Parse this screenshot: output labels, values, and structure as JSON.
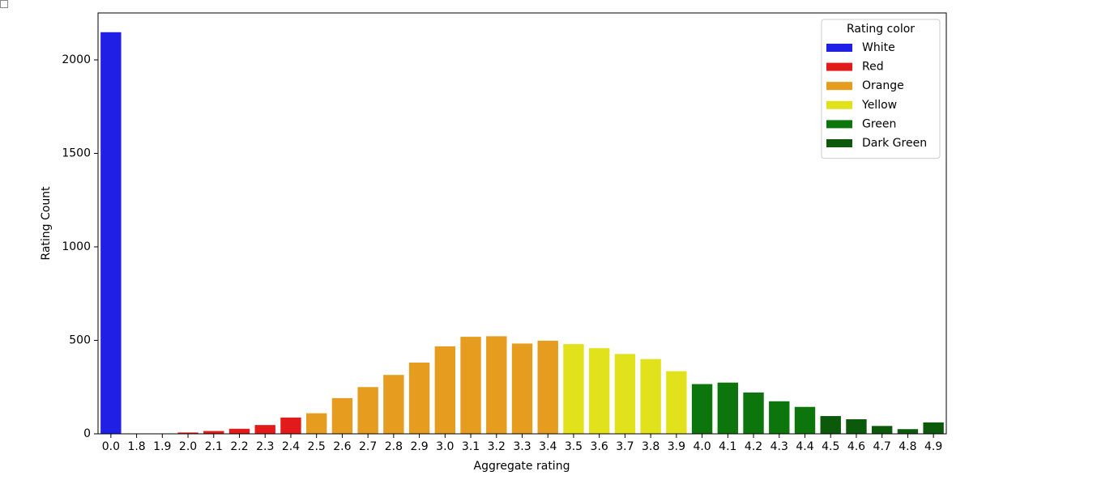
{
  "chart_data": {
    "type": "bar",
    "x_label": "Aggregate rating",
    "y_label": "Rating Count",
    "categories": [
      "0.0",
      "1.8",
      "1.9",
      "2.0",
      "2.1",
      "2.2",
      "2.3",
      "2.4",
      "2.5",
      "2.6",
      "2.7",
      "2.8",
      "2.9",
      "3.0",
      "3.1",
      "3.2",
      "3.3",
      "3.4",
      "3.5",
      "3.6",
      "3.7",
      "3.8",
      "3.9",
      "4.0",
      "4.1",
      "4.2",
      "4.3",
      "4.4",
      "4.5",
      "4.6",
      "4.7",
      "4.8",
      "4.9"
    ],
    "legend_title": "Rating color",
    "legend": "upper right",
    "series": [
      {
        "name": "White",
        "color": "#1f1fe6",
        "values": [
          2148,
          null,
          null,
          null,
          null,
          null,
          null,
          null,
          null,
          null,
          null,
          null,
          null,
          null,
          null,
          null,
          null,
          null,
          null,
          null,
          null,
          null,
          null,
          null,
          null,
          null,
          null,
          null,
          null,
          null,
          null,
          null,
          null
        ]
      },
      {
        "name": "Red",
        "color": "#e31a1a",
        "values": [
          null,
          1,
          2,
          7,
          15,
          27,
          47,
          87,
          null,
          null,
          null,
          null,
          null,
          null,
          null,
          null,
          null,
          null,
          null,
          null,
          null,
          null,
          null,
          null,
          null,
          null,
          null,
          null,
          null,
          null,
          null,
          null,
          null
        ]
      },
      {
        "name": "Orange",
        "color": "#e59c1f",
        "values": [
          null,
          null,
          null,
          null,
          null,
          null,
          null,
          null,
          110,
          191,
          250,
          315,
          381,
          468,
          519,
          522,
          483,
          498,
          null,
          null,
          null,
          null,
          null,
          null,
          null,
          null,
          null,
          null,
          null,
          null,
          null,
          null,
          null
        ]
      },
      {
        "name": "Yellow",
        "color": "#e2e21c",
        "values": [
          null,
          null,
          null,
          null,
          null,
          null,
          null,
          null,
          null,
          null,
          null,
          null,
          null,
          null,
          null,
          null,
          null,
          null,
          480,
          458,
          427,
          400,
          335,
          null,
          null,
          null,
          null,
          null,
          null,
          null,
          null,
          null,
          null
        ]
      },
      {
        "name": "Green",
        "color": "#0c760c",
        "values": [
          null,
          null,
          null,
          null,
          null,
          null,
          null,
          null,
          null,
          null,
          null,
          null,
          null,
          null,
          null,
          null,
          null,
          null,
          null,
          null,
          null,
          null,
          null,
          266,
          274,
          221,
          174,
          144,
          null,
          null,
          null,
          null,
          null
        ]
      },
      {
        "name": "Dark Green",
        "color": "#0c590c",
        "values": [
          null,
          null,
          null,
          null,
          null,
          null,
          null,
          null,
          null,
          null,
          null,
          null,
          null,
          null,
          null,
          null,
          null,
          null,
          null,
          null,
          null,
          null,
          null,
          null,
          null,
          null,
          null,
          null,
          95,
          78,
          42,
          25,
          61
        ]
      }
    ],
    "ylim": [
      0,
      2251
    ],
    "yticks": [
      0,
      500,
      1000,
      1500,
      2000
    ]
  }
}
